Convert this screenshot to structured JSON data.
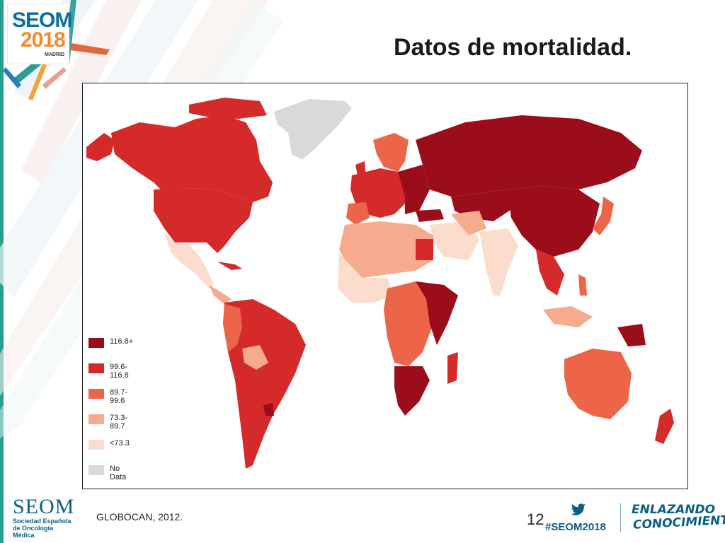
{
  "header": {
    "logo_line1": "SEOM",
    "logo_line2": "2018",
    "logo_city": "MADRID",
    "title": "Datos de mortalidad."
  },
  "map": {
    "legend": [
      {
        "label": "116.8+",
        "color": "#9b0d1b"
      },
      {
        "label": "99.6-116.8",
        "color": "#d42a2a"
      },
      {
        "label": "89.7-99.6",
        "color": "#ec6548"
      },
      {
        "label": "73.3-89.7",
        "color": "#f6ab8e"
      },
      {
        "label": "<73.3",
        "color": "#fbdccd"
      },
      {
        "label": "No Data",
        "color": "#d9d9d9"
      }
    ]
  },
  "footer": {
    "seom_name": "SEOM",
    "seom_sub1": "Sociedad Española",
    "seom_sub2": "de Oncología Médica",
    "source": "GLOBOCAN, 2012.",
    "page_number": "12",
    "hashtag": "#SEOM2018",
    "slogan1": "ENLAZANDO",
    "slogan2": "CONOCIMIENTO",
    "accent": "#0b5f86"
  }
}
